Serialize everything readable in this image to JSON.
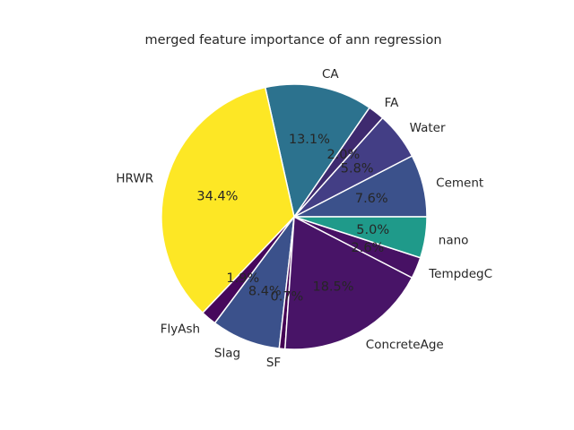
{
  "chart_data": {
    "type": "pie",
    "title": "merged feature importance of ann regression",
    "start_angle_deg": 0,
    "direction": "counterclockwise",
    "slices": [
      {
        "label": "Cement",
        "value": 7.6,
        "pct_label": "7.6%",
        "color": "#3b518b"
      },
      {
        "label": "Water",
        "value": 5.8,
        "pct_label": "5.8%",
        "color": "#433e85"
      },
      {
        "label": "FA",
        "value": 2.0,
        "pct_label": "2.0%",
        "color": "#3e2a6f"
      },
      {
        "label": "CA",
        "value": 13.1,
        "pct_label": "13.1%",
        "color": "#2c728e"
      },
      {
        "label": "HRWR",
        "value": 34.4,
        "pct_label": "34.4%",
        "color": "#fde725"
      },
      {
        "label": "FlyAsh",
        "value": 1.9,
        "pct_label": "1.9%",
        "color": "#46085c"
      },
      {
        "label": "Slag",
        "value": 8.4,
        "pct_label": "8.4%",
        "color": "#3b518b"
      },
      {
        "label": "SF",
        "value": 0.7,
        "pct_label": "0.7%",
        "color": "#440154"
      },
      {
        "label": "ConcreteAge",
        "value": 18.5,
        "pct_label": "18.5%",
        "color": "#481467"
      },
      {
        "label": "TempdegC",
        "value": 2.6,
        "pct_label": "2.6%",
        "color": "#471164"
      },
      {
        "label": "nano",
        "value": 5.0,
        "pct_label": "5.0%",
        "color": "#1f9a8a"
      }
    ]
  }
}
